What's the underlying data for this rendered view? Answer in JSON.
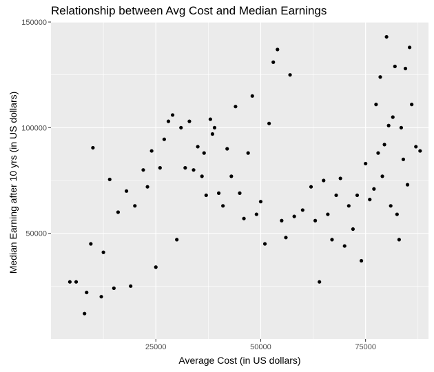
{
  "chart_data": {
    "type": "scatter",
    "title": "Relationship between Avg Cost and Median Earnings",
    "xlabel": "Average Cost (in US dollars)",
    "ylabel": "Median Earning after 10 yrs (in US dollars)",
    "xlim": [
      0,
      90000
    ],
    "ylim": [
      0,
      150000
    ],
    "x_ticks": [
      25000,
      50000,
      75000
    ],
    "x_tick_labels": [
      "25000",
      "50000",
      "75000"
    ],
    "y_ticks": [
      50000,
      100000,
      150000
    ],
    "y_tick_labels": [
      "50000",
      "100000",
      "150000"
    ],
    "grid": true,
    "legend": "none",
    "colors": {
      "panel": "#ebebeb",
      "grid": "#ffffff",
      "points": "#000000",
      "tick_text": "#4d4d4d"
    },
    "points": [
      [
        4500,
        27000
      ],
      [
        6000,
        27000
      ],
      [
        8000,
        12000
      ],
      [
        8500,
        22000
      ],
      [
        9500,
        45000
      ],
      [
        10000,
        90500
      ],
      [
        12000,
        20000
      ],
      [
        12500,
        41000
      ],
      [
        14000,
        75500
      ],
      [
        15000,
        24000
      ],
      [
        16000,
        60000
      ],
      [
        18000,
        70000
      ],
      [
        19000,
        25000
      ],
      [
        20000,
        63000
      ],
      [
        22000,
        80000
      ],
      [
        23000,
        72000
      ],
      [
        24000,
        89000
      ],
      [
        25000,
        34000
      ],
      [
        26000,
        81000
      ],
      [
        27000,
        94500
      ],
      [
        28000,
        103000
      ],
      [
        29000,
        106000
      ],
      [
        30000,
        47000
      ],
      [
        31000,
        100000
      ],
      [
        32000,
        81000
      ],
      [
        33000,
        103000
      ],
      [
        34000,
        80000
      ],
      [
        35000,
        91000
      ],
      [
        36000,
        77000
      ],
      [
        36500,
        88000
      ],
      [
        37000,
        68000
      ],
      [
        38000,
        104000
      ],
      [
        38500,
        97000
      ],
      [
        39000,
        100000
      ],
      [
        40000,
        69000
      ],
      [
        41000,
        63000
      ],
      [
        42000,
        90000
      ],
      [
        43000,
        77000
      ],
      [
        44000,
        110000
      ],
      [
        45000,
        69000
      ],
      [
        46000,
        57000
      ],
      [
        47000,
        88000
      ],
      [
        48000,
        115000
      ],
      [
        49000,
        59000
      ],
      [
        50000,
        65000
      ],
      [
        51000,
        45000
      ],
      [
        52000,
        102000
      ],
      [
        53000,
        131000
      ],
      [
        54000,
        137000
      ],
      [
        55000,
        56000
      ],
      [
        56000,
        48000
      ],
      [
        57000,
        125000
      ],
      [
        58000,
        58000
      ],
      [
        60000,
        61000
      ],
      [
        62000,
        72000
      ],
      [
        63000,
        56000
      ],
      [
        64000,
        27000
      ],
      [
        65000,
        75000
      ],
      [
        66000,
        59000
      ],
      [
        67000,
        47000
      ],
      [
        68000,
        68000
      ],
      [
        69000,
        76000
      ],
      [
        70000,
        44000
      ],
      [
        71000,
        63000
      ],
      [
        72000,
        52000
      ],
      [
        73000,
        68000
      ],
      [
        74000,
        37000
      ],
      [
        75000,
        83000
      ],
      [
        76000,
        66000
      ],
      [
        77000,
        71000
      ],
      [
        77500,
        111000
      ],
      [
        78000,
        88000
      ],
      [
        78500,
        124000
      ],
      [
        79000,
        77000
      ],
      [
        79500,
        92000
      ],
      [
        80000,
        143000
      ],
      [
        80500,
        101000
      ],
      [
        81000,
        63000
      ],
      [
        81500,
        105000
      ],
      [
        82000,
        129000
      ],
      [
        82500,
        59000
      ],
      [
        83000,
        47000
      ],
      [
        83500,
        100000
      ],
      [
        84000,
        85000
      ],
      [
        84500,
        128000
      ],
      [
        85000,
        73000
      ],
      [
        85500,
        138000
      ],
      [
        86000,
        111000
      ],
      [
        87000,
        91000
      ],
      [
        88000,
        89000
      ]
    ]
  }
}
